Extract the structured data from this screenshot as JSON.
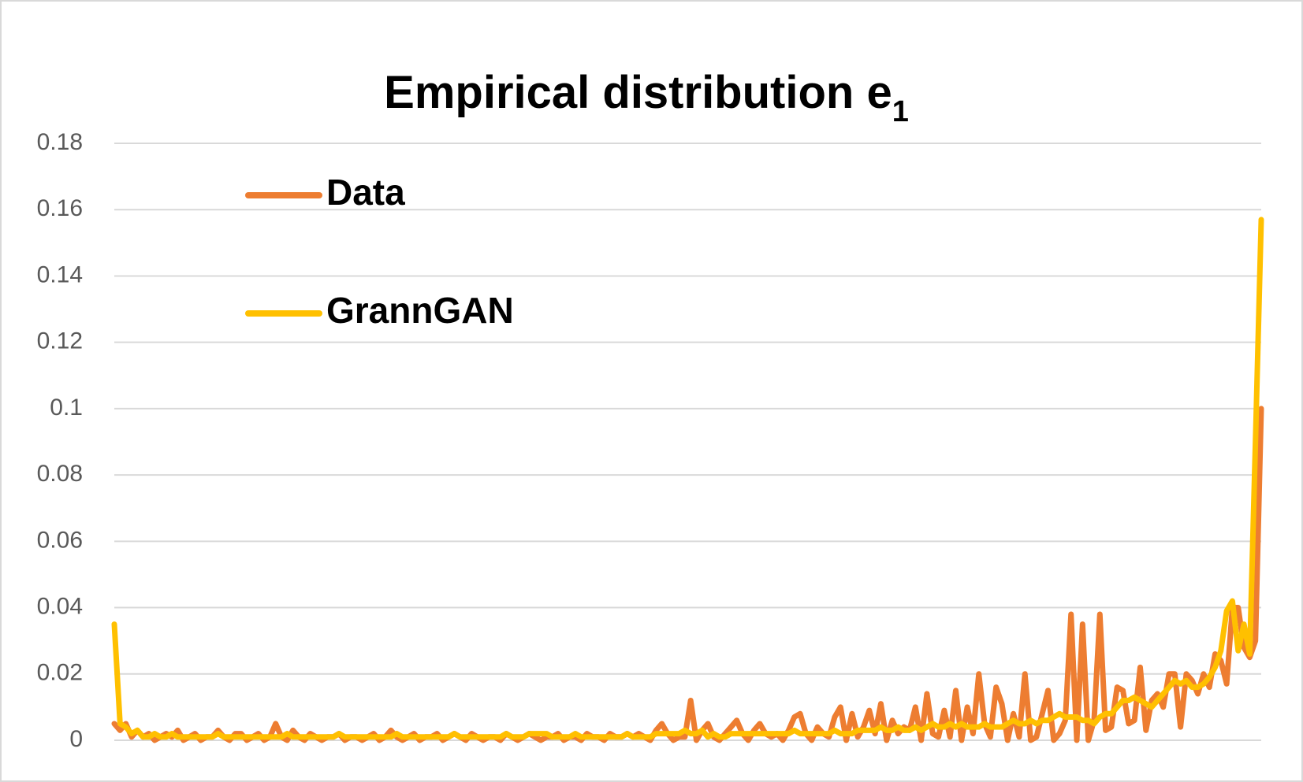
{
  "chart_data": {
    "type": "line",
    "title": "Empirical distribution e",
    "title_subscript": "1",
    "ylim": [
      0,
      0.18
    ],
    "yticks": [
      0,
      0.02,
      0.04,
      0.06,
      0.08,
      0.1,
      0.12,
      0.14,
      0.16,
      0.18
    ],
    "grid": true,
    "series": [
      {
        "name": "Data",
        "color": "#ed7d31",
        "values": [
          0.005,
          0.003,
          0.005,
          0.001,
          0.003,
          0.001,
          0.002,
          0,
          0.001,
          0.002,
          0.001,
          0.003,
          0,
          0.001,
          0.002,
          0,
          0.001,
          0.001,
          0.003,
          0.001,
          0,
          0.002,
          0.002,
          0,
          0.001,
          0.002,
          0,
          0.001,
          0.005,
          0.001,
          0,
          0.003,
          0.001,
          0,
          0.002,
          0.001,
          0,
          0.001,
          0.001,
          0.002,
          0,
          0.001,
          0.001,
          0,
          0.001,
          0.002,
          0,
          0.001,
          0.003,
          0.001,
          0,
          0.001,
          0.002,
          0,
          0.001,
          0.001,
          0.002,
          0,
          0.001,
          0.002,
          0.001,
          0,
          0.002,
          0.001,
          0,
          0.001,
          0.001,
          0,
          0.002,
          0.001,
          0,
          0.001,
          0.002,
          0.001,
          0,
          0.001,
          0.001,
          0.002,
          0,
          0.001,
          0.001,
          0,
          0.002,
          0.001,
          0.001,
          0,
          0.002,
          0.001,
          0.001,
          0.002,
          0.001,
          0.002,
          0.001,
          0,
          0.003,
          0.005,
          0.002,
          0,
          0.001,
          0.001,
          0.012,
          0,
          0.003,
          0.005,
          0.001,
          0,
          0.002,
          0.004,
          0.006,
          0.002,
          0,
          0.003,
          0.005,
          0.002,
          0.001,
          0.002,
          0,
          0.003,
          0.007,
          0.008,
          0.002,
          0,
          0.004,
          0.002,
          0.001,
          0.007,
          0.01,
          0,
          0.008,
          0.001,
          0.004,
          0.009,
          0.002,
          0.011,
          0,
          0.006,
          0.002,
          0.004,
          0.003,
          0.01,
          0,
          0.014,
          0.002,
          0.001,
          0.009,
          0.001,
          0.015,
          0,
          0.01,
          0.002,
          0.02,
          0.005,
          0.001,
          0.016,
          0.011,
          0,
          0.008,
          0.001,
          0.02,
          0,
          0.001,
          0.008,
          0.015,
          0,
          0.002,
          0.006,
          0.038,
          0,
          0.035,
          0,
          0.006,
          0.038,
          0.003,
          0.004,
          0.016,
          0.015,
          0.005,
          0.006,
          0.022,
          0.003,
          0.012,
          0.014,
          0.01,
          0.02,
          0.02,
          0.004,
          0.02,
          0.018,
          0.014,
          0.02,
          0.016,
          0.026,
          0.024,
          0.017,
          0.04,
          0.04,
          0.028,
          0.025,
          0.03,
          0.1
        ]
      },
      {
        "name": "GrannGAN",
        "color": "#ffc000",
        "values": [
          0.035,
          0.005,
          0.004,
          0.002,
          0.003,
          0.001,
          0.001,
          0.002,
          0.001,
          0.001,
          0.002,
          0.001,
          0.001,
          0.001,
          0.001,
          0.001,
          0.001,
          0.001,
          0.002,
          0.001,
          0.001,
          0.001,
          0.001,
          0.001,
          0.001,
          0.001,
          0.001,
          0.001,
          0.001,
          0.001,
          0.002,
          0.001,
          0.001,
          0.001,
          0.001,
          0.001,
          0.001,
          0.001,
          0.001,
          0.002,
          0.001,
          0.001,
          0.001,
          0.001,
          0.001,
          0.001,
          0.001,
          0.001,
          0.001,
          0.002,
          0.001,
          0.001,
          0.001,
          0.001,
          0.001,
          0.001,
          0.001,
          0.001,
          0.001,
          0.002,
          0.001,
          0.001,
          0.001,
          0.001,
          0.001,
          0.001,
          0.001,
          0.001,
          0.002,
          0.001,
          0.001,
          0.001,
          0.002,
          0.002,
          0.002,
          0.002,
          0.001,
          0.001,
          0.001,
          0.001,
          0.002,
          0.001,
          0.001,
          0.001,
          0.001,
          0.001,
          0.001,
          0.001,
          0.001,
          0.002,
          0.001,
          0.001,
          0.001,
          0.001,
          0.002,
          0.002,
          0.002,
          0.002,
          0.002,
          0.003,
          0.002,
          0.002,
          0.003,
          0.001,
          0.002,
          0.001,
          0.001,
          0.002,
          0.002,
          0.002,
          0.002,
          0.002,
          0.002,
          0.002,
          0.002,
          0.002,
          0.002,
          0.002,
          0.003,
          0.002,
          0.002,
          0.002,
          0.002,
          0.002,
          0.002,
          0.003,
          0.002,
          0.002,
          0.002,
          0.003,
          0.003,
          0.003,
          0.003,
          0.004,
          0.003,
          0.003,
          0.004,
          0.003,
          0.003,
          0.004,
          0.003,
          0.004,
          0.005,
          0.004,
          0.004,
          0.005,
          0.004,
          0.005,
          0.004,
          0.004,
          0.004,
          0.005,
          0.004,
          0.004,
          0.004,
          0.005,
          0.006,
          0.005,
          0.005,
          0.006,
          0.005,
          0.006,
          0.006,
          0.007,
          0.008,
          0.007,
          0.007,
          0.007,
          0.006,
          0.006,
          0.005,
          0.007,
          0.008,
          0.008,
          0.01,
          0.012,
          0.012,
          0.013,
          0.012,
          0.011,
          0.01,
          0.012,
          0.014,
          0.016,
          0.018,
          0.017,
          0.018,
          0.016,
          0.016,
          0.017,
          0.019,
          0.022,
          0.027,
          0.039,
          0.042,
          0.027,
          0.035,
          0.026,
          0.09,
          0.157
        ]
      }
    ]
  }
}
